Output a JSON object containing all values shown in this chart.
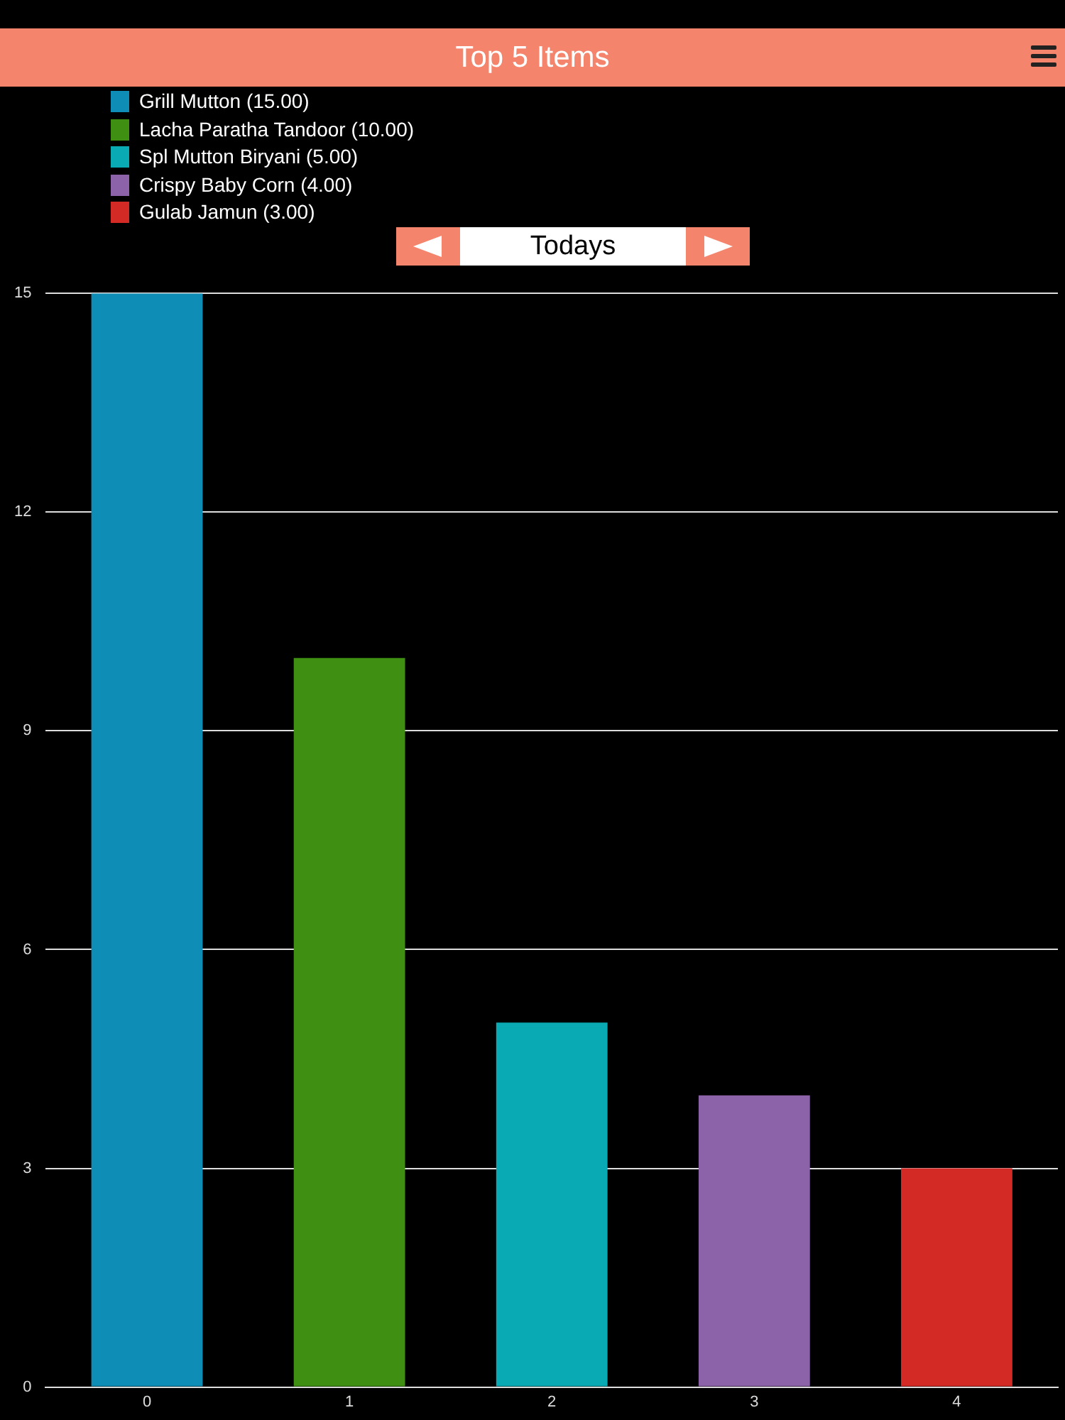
{
  "chart_data": {
    "type": "bar",
    "title": "Top 5 Items",
    "subtitle": "Todays",
    "categories": [
      "0",
      "1",
      "2",
      "3",
      "4"
    ],
    "series": [
      {
        "name": "Grill Mutton (15.00)",
        "color": "#0e8db6",
        "values": [
          15,
          null,
          null,
          null,
          null
        ]
      },
      {
        "name": "Lacha Paratha Tandoor (10.00)",
        "color": "#3f8f12",
        "values": [
          null,
          10,
          null,
          null,
          null
        ]
      },
      {
        "name": "Spl Mutton Biryani (5.00)",
        "color": "#0aaab4",
        "values": [
          null,
          null,
          5,
          null,
          null
        ]
      },
      {
        "name": "Crispy Baby Corn (4.00)",
        "color": "#8c62a8",
        "values": [
          null,
          null,
          null,
          4,
          null
        ]
      },
      {
        "name": "Gulab Jamun (3.00)",
        "color": "#d42a26",
        "values": [
          null,
          null,
          null,
          null,
          3
        ]
      }
    ],
    "ylim": [
      0,
      15
    ],
    "yticks": [
      0,
      3,
      6,
      9,
      12,
      15
    ],
    "grid": "y",
    "legend": "top left"
  }
}
